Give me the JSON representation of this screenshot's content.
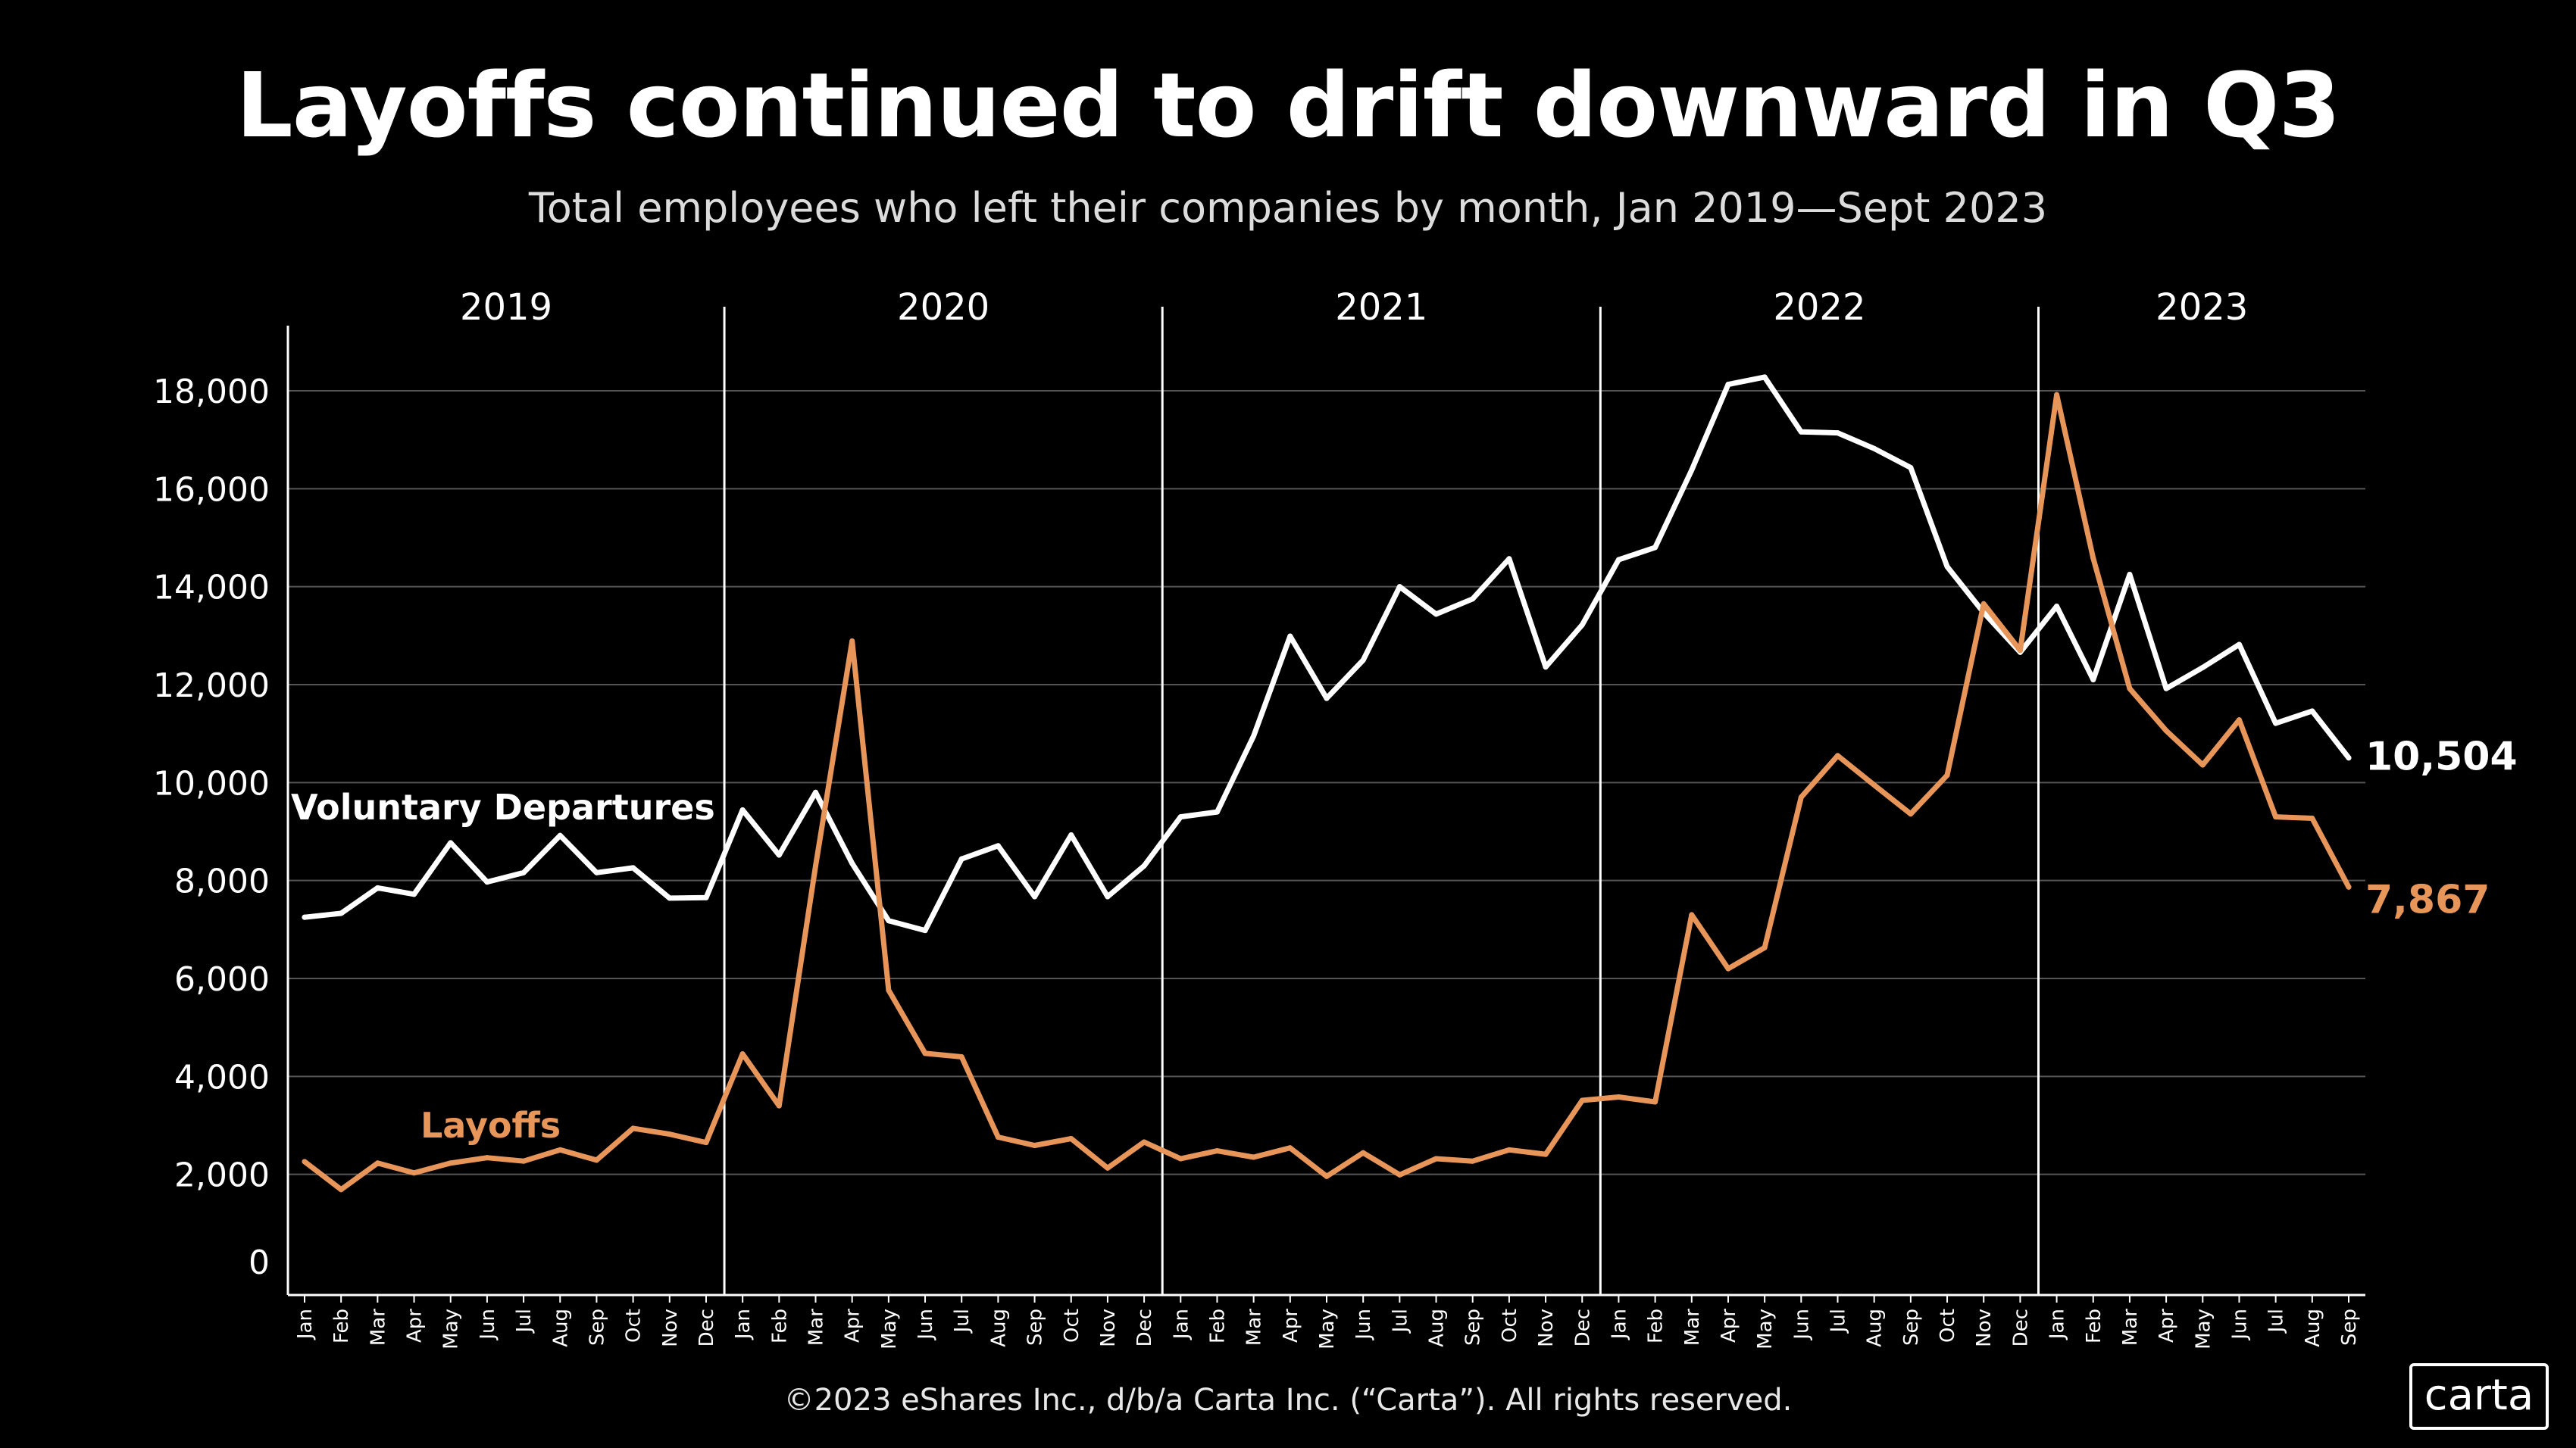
{
  "title": "Layoffs continued to drift downward in Q3",
  "subtitle": "Total employees who left their companies by month, Jan 2019—Sept 2023",
  "footer": "©2023 eShares Inc., d/b/a Carta Inc. (“Carta”). All rights reserved.",
  "logo": "carta",
  "colors": {
    "background": "#000000",
    "voluntary": "#ffffff",
    "layoffs": "#e8955a",
    "grid": "#555555"
  },
  "chart_data": {
    "type": "line",
    "title": "Layoffs continued to drift downward in Q3",
    "subtitle": "Total employees who left their companies by month, Jan 2019—Sept 2023",
    "ylim": [
      0,
      19000
    ],
    "yticks": [
      0,
      2000,
      4000,
      6000,
      8000,
      10000,
      12000,
      14000,
      16000,
      18000
    ],
    "ytick_labels": [
      "0",
      "2,000",
      "4,000",
      "6,000",
      "8,000",
      "10,000",
      "12,000",
      "14,000",
      "16,000",
      "18,000"
    ],
    "grid": true,
    "years": [
      {
        "label": "2019",
        "start": 0,
        "end": 11
      },
      {
        "label": "2020",
        "start": 12,
        "end": 23
      },
      {
        "label": "2021",
        "start": 24,
        "end": 35
      },
      {
        "label": "2022",
        "start": 36,
        "end": 47
      },
      {
        "label": "2023",
        "start": 48,
        "end": 56
      }
    ],
    "x": [
      "Jan",
      "Feb",
      "Mar",
      "Apr",
      "May",
      "Jun",
      "Jul",
      "Aug",
      "Sep",
      "Oct",
      "Nov",
      "Dec",
      "Jan",
      "Feb",
      "Mar",
      "Apr",
      "May",
      "Jun",
      "Jul",
      "Aug",
      "Sep",
      "Oct",
      "Nov",
      "Dec",
      "Jan",
      "Feb",
      "Mar",
      "Apr",
      "May",
      "Jun",
      "Jul",
      "Aug",
      "Sep",
      "Oct",
      "Nov",
      "Dec",
      "Jan",
      "Feb",
      "Mar",
      "Apr",
      "May",
      "Jun",
      "Jul",
      "Aug",
      "Sep",
      "Oct",
      "Nov",
      "Dec",
      "Jan",
      "Feb",
      "Mar",
      "Apr",
      "May",
      "Jun",
      "Jul",
      "Aug",
      "Sep"
    ],
    "series": [
      {
        "name": "Voluntary Departures",
        "color": "#ffffff",
        "end_label": "10,504",
        "values": [
          7250,
          7330,
          7850,
          7720,
          8770,
          7970,
          8160,
          8920,
          8160,
          8260,
          7640,
          7650,
          9440,
          8520,
          9800,
          8350,
          7180,
          6980,
          8440,
          8710,
          7670,
          8930,
          7670,
          8300,
          9300,
          9400,
          10950,
          12990,
          11720,
          12500,
          14000,
          13440,
          13750,
          14570,
          12360,
          13220,
          14550,
          14800,
          16380,
          18130,
          18280,
          17160,
          17140,
          16820,
          16430,
          14410,
          13470,
          12660,
          13600,
          12100,
          14250,
          11920,
          12350,
          12820,
          11210,
          11460,
          10504
        ]
      },
      {
        "name": "Layoffs",
        "color": "#e8955a",
        "end_label": "7,867",
        "values": [
          2260,
          1690,
          2230,
          2030,
          2230,
          2340,
          2270,
          2500,
          2290,
          2940,
          2820,
          2650,
          4460,
          3400,
          8300,
          12890,
          5760,
          4470,
          4400,
          2760,
          2590,
          2730,
          2130,
          2660,
          2320,
          2480,
          2350,
          2540,
          1960,
          2440,
          1990,
          2320,
          2270,
          2500,
          2410,
          3510,
          3580,
          3480,
          7300,
          6200,
          6630,
          9700,
          10550,
          9950,
          9360,
          10150,
          13650,
          12700,
          17920,
          14580,
          11920,
          11060,
          10360,
          11280,
          9300,
          9270,
          7867
        ]
      }
    ]
  }
}
